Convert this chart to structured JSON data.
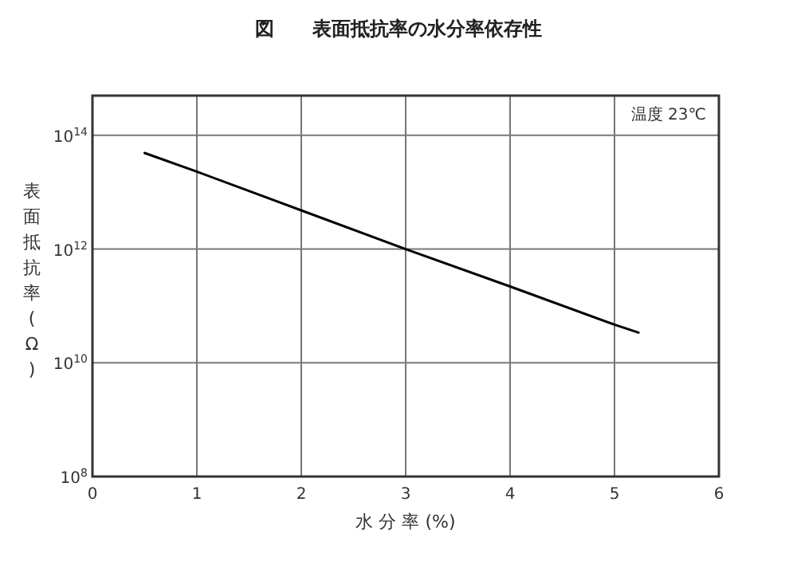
{
  "chart_data": {
    "type": "line",
    "title": "図　　表面抵抗率の水分率依存性",
    "xlabel": "水 分 率 (%)",
    "ylabel": "表面抵抗率(Ω)",
    "annotations": [
      "温度 23℃"
    ],
    "log": "y",
    "grid": true,
    "marker": "none",
    "line_style": "solid",
    "xlim": [
      0,
      6
    ],
    "xticks": [
      0,
      1,
      2,
      3,
      4,
      5,
      6
    ],
    "ylim": [
      100000000.0,
      500000000000000.0
    ],
    "yticks": [
      {
        "value": 100000000.0,
        "label": "10$^{8}$"
      },
      {
        "value": 10000000000.0,
        "label": "10$^{10}$"
      },
      {
        "value": 1000000000000.0,
        "label": "10$^{12}$"
      },
      {
        "value": 100000000000000.0,
        "label": "10$^{14}$"
      }
    ],
    "series": [
      {
        "color": "#000000",
        "x": [
          0.5,
          1,
          2,
          3,
          4,
          5,
          5.23
        ],
        "values": [
          49000000000000.0,
          23000000000000.0,
          4800000000000.0,
          1000000000000.0,
          220000000000.0,
          47000000000.0,
          34000000000.0
        ]
      }
    ]
  }
}
